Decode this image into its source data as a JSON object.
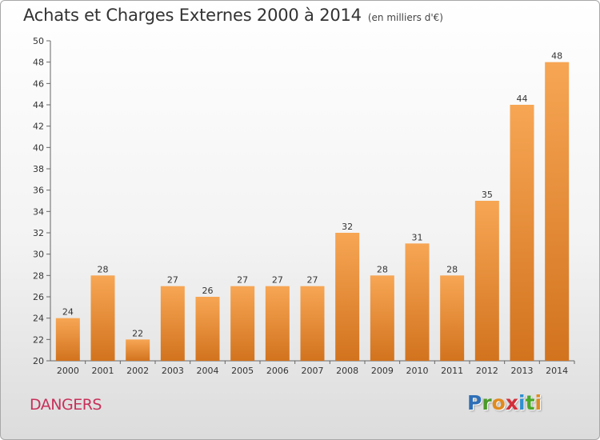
{
  "header": {
    "title": "Achats et Charges Externes 2000 à 2014",
    "subtitle": "(en milliers d'€)"
  },
  "footer": {
    "city": "DANGERS",
    "brand": "Proxiti",
    "brand_letters": [
      "P",
      "r",
      "o",
      "x",
      "i",
      "t",
      "i"
    ]
  },
  "colors": {
    "bar_light": "#f7a654",
    "bar_dark": "#d2731e",
    "city": "#c8305a",
    "brand": [
      "#2e6fb7",
      "#4a9a2a",
      "#e08a1e",
      "#d12f3a",
      "#2e8fd0",
      "#4aa82a",
      "#e08a1e"
    ]
  },
  "chart_data": {
    "type": "bar",
    "categories": [
      "2000",
      "2001",
      "2002",
      "2003",
      "2004",
      "2005",
      "2006",
      "2007",
      "2008",
      "2009",
      "2010",
      "2011",
      "2012",
      "2013",
      "2014"
    ],
    "values": [
      24,
      28,
      22,
      27,
      26,
      27,
      27,
      27,
      32,
      28,
      31,
      28,
      35,
      44,
      48
    ],
    "ylim": [
      20,
      50
    ],
    "yticks": [
      20,
      22,
      24,
      26,
      28,
      30,
      32,
      34,
      36,
      38,
      40,
      42,
      44,
      46,
      48,
      50
    ],
    "grid": false,
    "data_labels": true
  }
}
